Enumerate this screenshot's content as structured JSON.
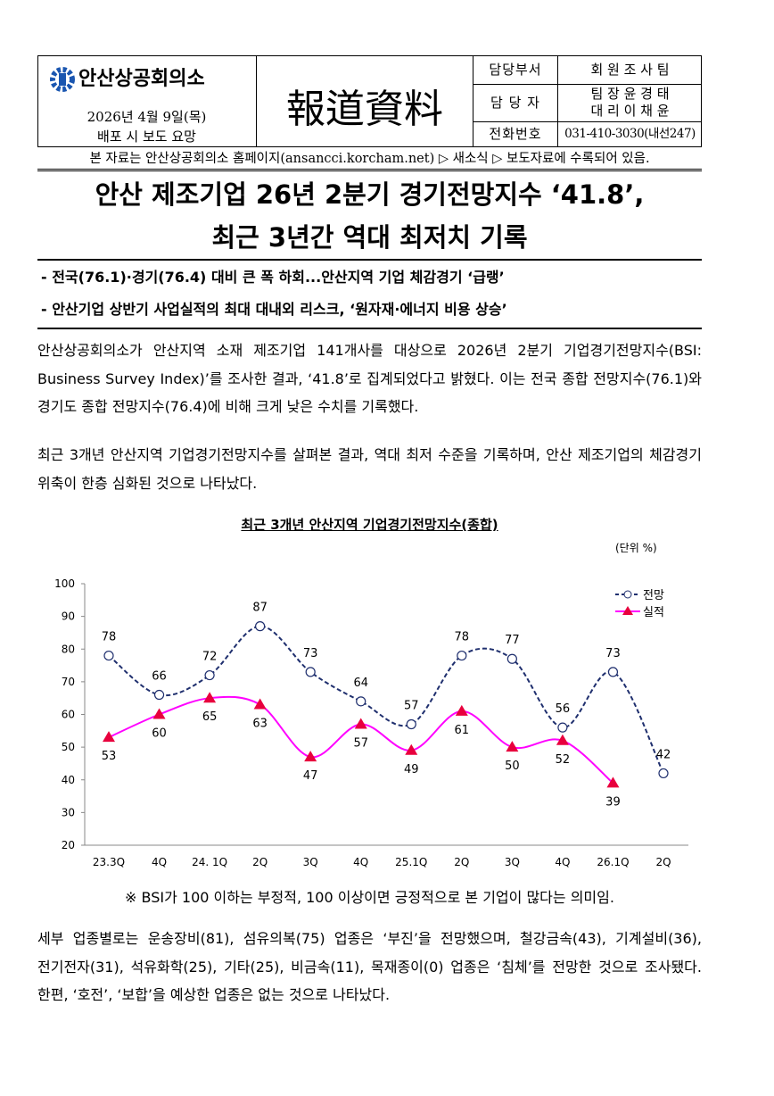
{
  "header": {
    "logo": "안산상공회의소",
    "date": "2026년 4월 9일(목)",
    "release": "배포 시 보도 요망",
    "title": "報道資料",
    "contacts": [
      {
        "label": "담당부서",
        "value": [
          "회 원 조 사 팀"
        ]
      },
      {
        "label": "담 당 자",
        "value": [
          "팀 장 윤 경 태",
          "대 리 이 채 윤"
        ]
      },
      {
        "label": "전화번호",
        "value": [
          "031-410-3030(내선247)"
        ]
      }
    ],
    "notice": "본 자료는 안산상공회의소 홈페이지(ansancci.korcham.net) ▷ 새소식 ▷ 보도자료에 수록되어 있음."
  },
  "headline": [
    "안산 제조기업 26년 2분기 경기전망지수 ‘41.8’,",
    "최근 3년간 역대 최저치 기록"
  ],
  "subpoints": [
    "- 전국(76.1)·경기(76.4) 대비 큰 폭 하회...안산지역 기업 체감경기 ‘급랭’",
    "- 안산기업 상반기 사업실적의 최대 대내외 리스크, ‘원자재·에너지 비용 상승’"
  ],
  "paragraphs": [
    "안산상공회의소가 안산지역 소재 제조기업 141개사를 대상으로 2026년 2분기 기업경기전망지수(BSI: Business Survey Index)’를 조사한 결과, ‘41.8’로 집계되었다고 밝혔다. 이는 전국 종합 전망지수(76.1)와 경기도 종합 전망지수(76.4)에 비해 크게 낮은 수치를 기록했다.",
    "최근 3개년 안산지역 기업경기전망지수를 살펴본 결과, 역대 최저 수준을 기록하며, 안산 제조기업의 체감경기 위축이 한층 심화된 것으로 나타났다."
  ],
  "chart_data": {
    "type": "line",
    "title": "최근 3개년 안산지역 기업경기전망지수(종합)",
    "unit": "(단위 %)",
    "categories": [
      "23.3Q",
      "4Q",
      "24. 1Q",
      "2Q",
      "3Q",
      "4Q",
      "25.1Q",
      "2Q",
      "3Q",
      "4Q",
      "26.1Q",
      "2Q"
    ],
    "series": [
      {
        "name": "전망",
        "color": "#1f2f6e",
        "marker": "circle",
        "dashed": true,
        "values": [
          78,
          66,
          72,
          87,
          73,
          64,
          57,
          78,
          77,
          56,
          73,
          42
        ]
      },
      {
        "name": "실적",
        "color": "#ff00ff",
        "marker": "triangle",
        "marker_color": "#e8003d",
        "dashed": false,
        "values": [
          53,
          60,
          65,
          63,
          47,
          57,
          49,
          61,
          50,
          52,
          39,
          null
        ]
      }
    ],
    "ylim": [
      20,
      100
    ],
    "yticks": [
      20,
      30,
      40,
      50,
      60,
      70,
      80,
      90,
      100
    ],
    "smooth": true,
    "legend": "upper right"
  },
  "footnote": "※ BSI가 100 이하는 부정적, 100 이상이면 긍정적으로 본 기업이 많다는 의미임.",
  "closing": "세부 업종별로는 운송장비(81), 섬유의복(75) 업종은 ‘부진’을 전망했으며, 철강금속(43), 기계설비(36), 전기전자(31), 석유화학(25), 기타(25), 비금속(11), 목재종이(0) 업종은 ‘침체’를 전망한 것으로 조사됐다. 한편, ‘호전’, ‘보합’을 예상한 업종은 없는 것으로 나타났다."
}
